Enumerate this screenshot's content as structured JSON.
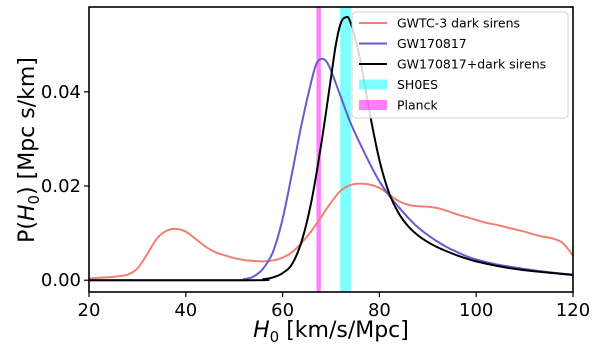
{
  "chart_data": {
    "type": "line",
    "xlabel": "H_0 [km/s/Mpc]",
    "xlabel_parts": {
      "symbol": "H",
      "sub": "0",
      "rest": " [km/s/Mpc]"
    },
    "ylabel": "P(H_0) [Mpc s/km]",
    "ylabel_parts": {
      "pre": "P(",
      "symbol": "H",
      "sub": "0",
      "post": ") [Mpc s/km]"
    },
    "xlim": [
      20,
      120
    ],
    "ylim": [
      -0.0025,
      0.058
    ],
    "xticks": [
      20,
      40,
      60,
      80,
      100,
      120
    ],
    "xtick_labels": [
      "20",
      "40",
      "60",
      "80",
      "100",
      "120"
    ],
    "yticks": [
      0.0,
      0.02,
      0.04
    ],
    "ytick_labels": [
      "0.00",
      "0.02",
      "0.04"
    ],
    "grid": false,
    "legend_position": "top-right",
    "series": [
      {
        "name": "GWTC-3 dark sirens",
        "color": "#f08070",
        "style": "line",
        "x": [
          20,
          25,
          28,
          30,
          32,
          34,
          36,
          38,
          40,
          42,
          44,
          46,
          48,
          50,
          52,
          54,
          56,
          58,
          60,
          62,
          64,
          66,
          68,
          70,
          72,
          74,
          76,
          78,
          80,
          82,
          84,
          86,
          88,
          90,
          92,
          94,
          96,
          98,
          100,
          102,
          104,
          106,
          108,
          110,
          112,
          114,
          116,
          118,
          120
        ],
        "y": [
          0.0004,
          0.0007,
          0.0012,
          0.0025,
          0.0055,
          0.0088,
          0.0105,
          0.0109,
          0.0103,
          0.0088,
          0.0072,
          0.006,
          0.0053,
          0.0047,
          0.0043,
          0.0041,
          0.004,
          0.0042,
          0.0048,
          0.006,
          0.008,
          0.0105,
          0.0135,
          0.0165,
          0.019,
          0.0202,
          0.0205,
          0.0203,
          0.0196,
          0.0182,
          0.0168,
          0.016,
          0.0157,
          0.0156,
          0.0153,
          0.0147,
          0.014,
          0.0134,
          0.0128,
          0.0122,
          0.0118,
          0.0113,
          0.0108,
          0.0103,
          0.0097,
          0.0092,
          0.0088,
          0.0078,
          0.0052
        ]
      },
      {
        "name": "GW170817",
        "color": "#6a5acd",
        "style": "line",
        "x": [
          20,
          50,
          52,
          54,
          56,
          58,
          60,
          62,
          64,
          66,
          67,
          68,
          69,
          70,
          72,
          74,
          76,
          78,
          80,
          82,
          84,
          86,
          88,
          90,
          92,
          94,
          96,
          98,
          100,
          104,
          108,
          112,
          116,
          120
        ],
        "y": [
          0.0,
          0.0,
          0.0002,
          0.0008,
          0.0025,
          0.006,
          0.013,
          0.023,
          0.0335,
          0.0425,
          0.046,
          0.047,
          0.0465,
          0.0445,
          0.039,
          0.0335,
          0.029,
          0.0248,
          0.021,
          0.018,
          0.0155,
          0.0132,
          0.0112,
          0.0096,
          0.0082,
          0.007,
          0.006,
          0.0051,
          0.0044,
          0.0034,
          0.0027,
          0.0021,
          0.0016,
          0.0012
        ]
      },
      {
        "name": "GW170817+dark sirens",
        "color": "#000000",
        "style": "line",
        "x": [
          20,
          54,
          56,
          58,
          60,
          62,
          64,
          66,
          68,
          70,
          71,
          72,
          73,
          74,
          76,
          78,
          80,
          82,
          84,
          86,
          88,
          90,
          92,
          94,
          96,
          98,
          100,
          104,
          108,
          112,
          116,
          120
        ],
        "y": [
          0.0,
          0.0,
          0.0002,
          0.0006,
          0.0015,
          0.0035,
          0.0085,
          0.017,
          0.029,
          0.043,
          0.05,
          0.0545,
          0.0558,
          0.0548,
          0.047,
          0.0355,
          0.0255,
          0.0185,
          0.0142,
          0.0114,
          0.0095,
          0.0081,
          0.007,
          0.0061,
          0.0053,
          0.0046,
          0.004,
          0.0031,
          0.0024,
          0.0019,
          0.0015,
          0.0011
        ]
      },
      {
        "name": "SH0ES",
        "color": "#00ffff",
        "style": "band",
        "alpha": 0.5,
        "xmin": 71.9,
        "xmax": 74.1
      },
      {
        "name": "Planck",
        "color": "#ff00ff",
        "style": "band",
        "alpha": 0.5,
        "xmin": 67.0,
        "xmax": 67.9
      }
    ]
  }
}
